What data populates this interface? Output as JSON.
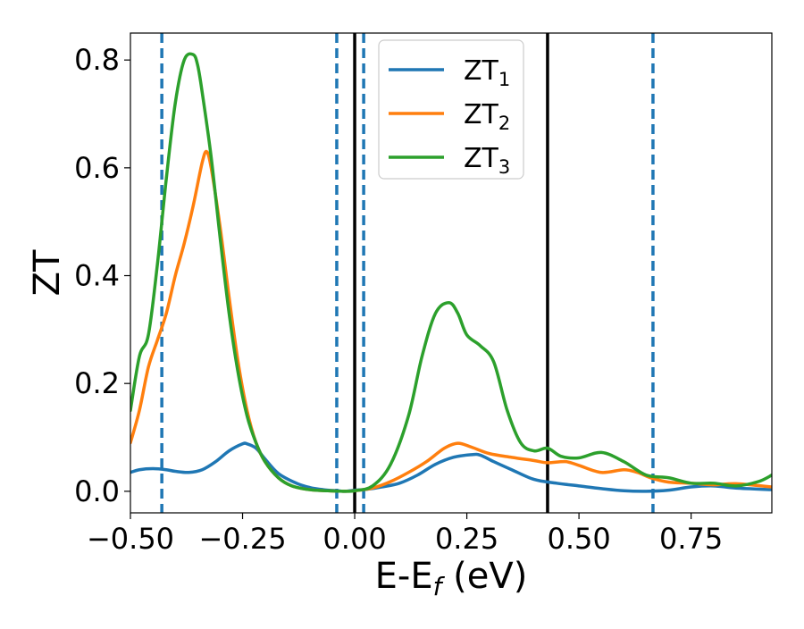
{
  "chart_data": {
    "type": "line",
    "title": "",
    "xlabel": "E-E",
    "xlabel_sub": "f",
    "xlabel_unit": " (eV)",
    "ylabel": "ZT",
    "xlim": [
      -0.5,
      0.93
    ],
    "ylim": [
      -0.04,
      0.85
    ],
    "xticks": [
      -0.5,
      -0.25,
      0.0,
      0.25,
      0.5,
      0.75
    ],
    "xtick_labels": [
      "−0.50",
      "−0.25",
      "0.00",
      "0.25",
      "0.50",
      "0.75"
    ],
    "yticks": [
      0.0,
      0.2,
      0.4,
      0.6,
      0.8
    ],
    "ytick_labels": [
      "0.0",
      "0.2",
      "0.4",
      "0.6",
      "0.8"
    ],
    "grid": false,
    "legend_position": "top-center",
    "vlines_solid": [
      0.0,
      0.43
    ],
    "vlines_dashed": [
      -0.43,
      -0.04,
      0.02,
      0.665
    ],
    "vline_solid_color": "#000000",
    "vline_dashed_color": "#1f77b4",
    "series": [
      {
        "name": "ZT",
        "name_sub": "1",
        "color": "#1f77b4",
        "x": [
          -0.5,
          -0.48,
          -0.45,
          -0.42,
          -0.4,
          -0.37,
          -0.34,
          -0.31,
          -0.28,
          -0.25,
          -0.24,
          -0.22,
          -0.2,
          -0.17,
          -0.13,
          -0.1,
          -0.07,
          -0.04,
          -0.02,
          0.0,
          0.03,
          0.06,
          0.1,
          0.14,
          0.18,
          0.22,
          0.26,
          0.28,
          0.31,
          0.35,
          0.4,
          0.45,
          0.5,
          0.55,
          0.6,
          0.65,
          0.7,
          0.75,
          0.8,
          0.85,
          0.93
        ],
        "y": [
          0.035,
          0.04,
          0.042,
          0.04,
          0.037,
          0.035,
          0.04,
          0.055,
          0.075,
          0.088,
          0.088,
          0.08,
          0.06,
          0.033,
          0.015,
          0.007,
          0.003,
          0.001,
          0.0,
          0.002,
          0.004,
          0.008,
          0.015,
          0.03,
          0.05,
          0.063,
          0.068,
          0.067,
          0.055,
          0.04,
          0.022,
          0.015,
          0.01,
          0.005,
          0.001,
          0.0,
          0.002,
          0.008,
          0.01,
          0.006,
          0.003
        ]
      },
      {
        "name": "ZT",
        "name_sub": "2",
        "color": "#ff7f0e",
        "x": [
          -0.5,
          -0.48,
          -0.46,
          -0.44,
          -0.42,
          -0.4,
          -0.38,
          -0.36,
          -0.34,
          -0.33,
          -0.32,
          -0.3,
          -0.28,
          -0.26,
          -0.24,
          -0.22,
          -0.2,
          -0.17,
          -0.14,
          -0.1,
          -0.06,
          -0.02,
          0.0,
          0.04,
          0.08,
          0.12,
          0.16,
          0.2,
          0.23,
          0.26,
          0.3,
          0.35,
          0.4,
          0.43,
          0.47,
          0.5,
          0.55,
          0.6,
          0.63,
          0.66,
          0.7,
          0.75,
          0.8,
          0.85,
          0.93
        ],
        "y": [
          0.09,
          0.15,
          0.23,
          0.28,
          0.33,
          0.4,
          0.46,
          0.53,
          0.61,
          0.63,
          0.6,
          0.49,
          0.36,
          0.24,
          0.15,
          0.09,
          0.055,
          0.025,
          0.01,
          0.003,
          0.001,
          0.0,
          0.001,
          0.006,
          0.018,
          0.035,
          0.055,
          0.08,
          0.089,
          0.082,
          0.07,
          0.063,
          0.057,
          0.053,
          0.055,
          0.048,
          0.035,
          0.04,
          0.035,
          0.025,
          0.017,
          0.015,
          0.012,
          0.014,
          0.008
        ]
      },
      {
        "name": "ZT",
        "name_sub": "3",
        "color": "#2ca02c",
        "x": [
          -0.5,
          -0.48,
          -0.46,
          -0.44,
          -0.42,
          -0.4,
          -0.38,
          -0.36,
          -0.35,
          -0.34,
          -0.32,
          -0.3,
          -0.28,
          -0.26,
          -0.24,
          -0.22,
          -0.2,
          -0.17,
          -0.14,
          -0.1,
          -0.06,
          -0.02,
          0.0,
          0.04,
          0.08,
          0.12,
          0.15,
          0.18,
          0.21,
          0.23,
          0.25,
          0.28,
          0.31,
          0.34,
          0.37,
          0.4,
          0.43,
          0.46,
          0.5,
          0.55,
          0.6,
          0.65,
          0.7,
          0.75,
          0.8,
          0.85,
          0.9,
          0.93
        ],
        "y": [
          0.15,
          0.25,
          0.29,
          0.42,
          0.58,
          0.72,
          0.8,
          0.81,
          0.79,
          0.74,
          0.62,
          0.47,
          0.33,
          0.22,
          0.14,
          0.09,
          0.055,
          0.025,
          0.01,
          0.003,
          0.001,
          0.0,
          0.001,
          0.01,
          0.05,
          0.14,
          0.25,
          0.33,
          0.35,
          0.33,
          0.29,
          0.27,
          0.24,
          0.15,
          0.09,
          0.075,
          0.08,
          0.065,
          0.062,
          0.072,
          0.055,
          0.03,
          0.025,
          0.015,
          0.015,
          0.01,
          0.018,
          0.03
        ]
      }
    ]
  }
}
